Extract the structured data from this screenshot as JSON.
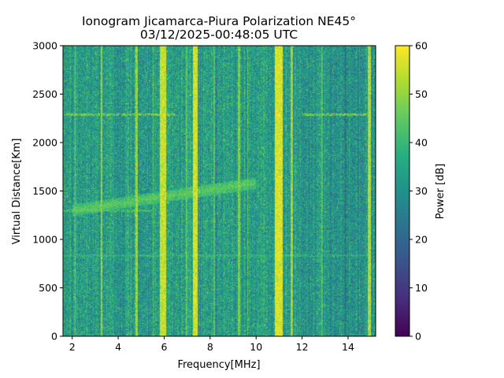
{
  "chart_data": {
    "type": "heatmap",
    "title": "Ionogram Jicamarca-Piura Polarization NE45°",
    "subtitle": "03/12/2025-00:48:05 UTC",
    "xlabel": "Frequency[MHz]",
    "ylabel": "Virtual Distance[Km]",
    "colorbar_label": "Power [dB]",
    "xlim": [
      1.6,
      15.2
    ],
    "ylim": [
      0,
      3000
    ],
    "clim": [
      0,
      60
    ],
    "x_ticks": [
      2,
      4,
      6,
      8,
      10,
      12,
      14
    ],
    "x_tick_labels": [
      "2",
      "4",
      "6",
      "8",
      "10",
      "12",
      "14"
    ],
    "y_ticks": [
      0,
      500,
      1000,
      1500,
      2000,
      2500,
      3000
    ],
    "y_tick_labels": [
      "0",
      "500",
      "1000",
      "1500",
      "2000",
      "2500",
      "3000"
    ],
    "colorbar_ticks": [
      0,
      10,
      20,
      30,
      40,
      50,
      60
    ],
    "colorbar_tick_labels": [
      "0",
      "10",
      "20",
      "30",
      "40",
      "50",
      "60"
    ],
    "colormap": "viridis",
    "background_level_db": 33,
    "strong_vertical_bands_mhz": [
      {
        "x0": 5.8,
        "x1": 6.1,
        "level_db": 55
      },
      {
        "x0": 7.25,
        "x1": 7.45,
        "level_db": 56
      },
      {
        "x0": 10.8,
        "x1": 11.15,
        "level_db": 57
      },
      {
        "x0": 11.5,
        "x1": 11.6,
        "level_db": 50
      },
      {
        "x0": 4.75,
        "x1": 4.85,
        "level_db": 50
      },
      {
        "x0": 3.25,
        "x1": 3.32,
        "level_db": 49
      },
      {
        "x0": 14.85,
        "x1": 15.0,
        "level_db": 52
      },
      {
        "x0": 2.1,
        "x1": 2.15,
        "level_db": 46
      },
      {
        "x0": 9.2,
        "x1": 9.3,
        "level_db": 47
      },
      {
        "x0": 6.95,
        "x1": 7.0,
        "level_db": 44
      },
      {
        "x0": 9.6,
        "x1": 9.65,
        "level_db": 45
      },
      {
        "x0": 12.85,
        "x1": 12.9,
        "level_db": 43
      },
      {
        "x0": 5.5,
        "x1": 5.55,
        "level_db": 44
      },
      {
        "x0": 8.15,
        "x1": 8.2,
        "level_db": 43
      }
    ],
    "horizontal_echo_lines_km": [
      {
        "km": 2290,
        "x0": 1.6,
        "x1": 6.5,
        "level_db": 48
      },
      {
        "km": 2290,
        "x0": 12.0,
        "x1": 15.0,
        "level_db": 48
      },
      {
        "km": 830,
        "x0": 1.6,
        "x1": 15.0,
        "level_db": 40
      },
      {
        "km": 1300,
        "x0": 1.6,
        "x1": 5.5,
        "level_db": 44
      }
    ],
    "ionospheric_trace": {
      "x_start": 2.0,
      "x_end": 10.0,
      "km_start": 1300,
      "km_end": 1580,
      "level_db": 45
    }
  }
}
